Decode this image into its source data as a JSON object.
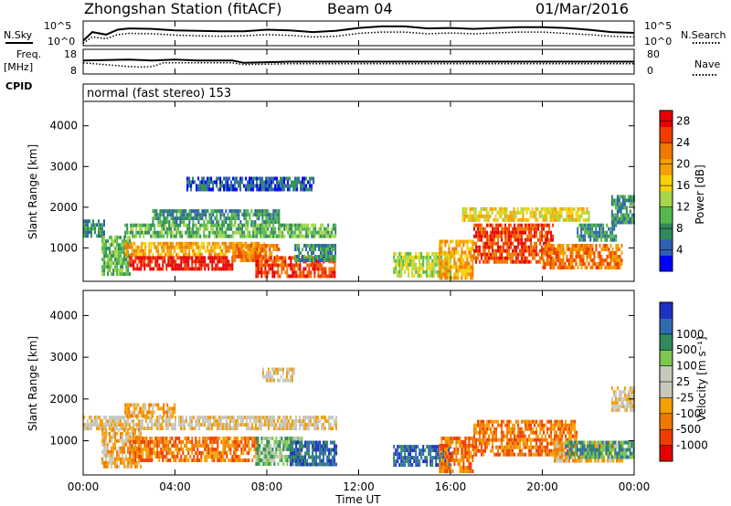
{
  "header": {
    "station": "Zhongshan Station (fitACF)",
    "beam": "Beam 04",
    "date": "01/Mar/2016"
  },
  "left_labels": {
    "nsky": "N.Sky",
    "freq_top": "Freq.",
    "freq_unit": "[MHz]",
    "cpid": "CPID"
  },
  "right_labels": {
    "nsearch": "N.Search",
    "nave": "Nave"
  },
  "cpid_text": "normal (fast stereo) 153",
  "colors": {
    "power": [
      "#0000ff",
      "#2f5fb0",
      "#2f8a5c",
      "#55b84a",
      "#a6d64a",
      "#f5d20a",
      "#f5a000",
      "#f07800",
      "#f03c00",
      "#e60000"
    ],
    "velocity": [
      "#e60000",
      "#f03c00",
      "#f07800",
      "#f5a000",
      "#c8c8be",
      "#c8c8be",
      "#7ec850",
      "#2f8a5c",
      "#2f6ab0",
      "#2030c0"
    ]
  },
  "chart_data": [
    {
      "type": "line",
      "name": "noise",
      "xlim": [
        0,
        24
      ],
      "ylim_left_ticks": [
        "10^5",
        "10^0"
      ],
      "ylim_right_ticks": [
        "10^5",
        "10^0"
      ],
      "series": [
        {
          "name": "N.Sky",
          "style": "solid",
          "x": [
            0,
            0.4,
            1,
            1.5,
            2,
            3,
            4,
            5,
            6,
            7,
            8,
            9,
            10,
            11,
            12,
            13,
            14,
            15,
            16,
            17,
            18,
            19,
            20,
            21,
            22,
            23,
            24
          ],
          "y": [
            0.8,
            0.45,
            0.55,
            0.35,
            0.3,
            0.32,
            0.38,
            0.4,
            0.42,
            0.42,
            0.35,
            0.38,
            0.45,
            0.4,
            0.28,
            0.22,
            0.22,
            0.3,
            0.28,
            0.32,
            0.28,
            0.25,
            0.25,
            0.28,
            0.35,
            0.45,
            0.48
          ]
        },
        {
          "name": "N.Search",
          "style": "dotted",
          "x": [
            0,
            0.4,
            1,
            1.5,
            2,
            3,
            4,
            5,
            6,
            7,
            8,
            9,
            10,
            11,
            12,
            13,
            14,
            15,
            16,
            17,
            18,
            19,
            20,
            21,
            22,
            23,
            24
          ],
          "y": [
            0.9,
            0.65,
            0.72,
            0.55,
            0.5,
            0.52,
            0.57,
            0.6,
            0.62,
            0.6,
            0.55,
            0.58,
            0.65,
            0.62,
            0.5,
            0.45,
            0.45,
            0.52,
            0.48,
            0.52,
            0.48,
            0.45,
            0.45,
            0.5,
            0.55,
            0.62,
            0.65
          ]
        }
      ]
    },
    {
      "type": "line",
      "name": "frequency",
      "xlim": [
        0,
        24
      ],
      "left_ticks": [
        "18",
        "8"
      ],
      "right_ticks": [
        "80",
        "0"
      ],
      "series": [
        {
          "name": "Freq.",
          "style": "solid",
          "x": [
            0,
            2,
            3,
            4,
            5,
            6,
            6.5,
            7,
            9,
            12,
            16,
            20,
            24
          ],
          "y": [
            0.45,
            0.42,
            0.45,
            0.42,
            0.45,
            0.45,
            0.45,
            0.55,
            0.5,
            0.5,
            0.5,
            0.5,
            0.5
          ]
        },
        {
          "name": "Nave",
          "style": "dotted",
          "x": [
            0,
            2,
            2.5,
            3,
            3.5,
            4,
            6,
            6.5,
            7,
            9,
            12,
            16,
            20,
            24
          ],
          "y": [
            0.55,
            0.7,
            0.72,
            0.7,
            0.55,
            0.55,
            0.55,
            0.55,
            0.62,
            0.58,
            0.58,
            0.58,
            0.58,
            0.58
          ]
        }
      ]
    },
    {
      "type": "heatmap",
      "name": "power",
      "xlabel": "",
      "ylabel": "Slant Range [km]",
      "yticks": [
        1000,
        2000,
        3000,
        4000
      ],
      "ylim": [
        180,
        4600
      ],
      "xlim": [
        0,
        24
      ],
      "colorbar_label": "Power [dB]",
      "colorbar_ticks": [
        4,
        8,
        12,
        16,
        20,
        24,
        28
      ],
      "colorbar_range": [
        0,
        30
      ],
      "regions": [
        {
          "t0": 0.0,
          "t1": 0.9,
          "r0": 1300,
          "r1": 1700,
          "level": 2
        },
        {
          "t0": 0.8,
          "t1": 2.0,
          "r0": 400,
          "r1": 1300,
          "level": 3
        },
        {
          "t0": 1.8,
          "t1": 11.0,
          "r0": 1300,
          "r1": 1600,
          "level": 3
        },
        {
          "t0": 1.8,
          "t1": 8.0,
          "r0": 850,
          "r1": 1150,
          "level": 6
        },
        {
          "t0": 2.0,
          "t1": 6.5,
          "r0": 450,
          "r1": 800,
          "level": 9
        },
        {
          "t0": 3.0,
          "t1": 8.5,
          "r0": 1650,
          "r1": 1950,
          "level": 2
        },
        {
          "t0": 6.5,
          "t1": 8.5,
          "r0": 700,
          "r1": 1100,
          "level": 7
        },
        {
          "t0": 7.5,
          "t1": 11.0,
          "r0": 300,
          "r1": 800,
          "level": 8
        },
        {
          "t0": 9.2,
          "t1": 11.0,
          "r0": 700,
          "r1": 1100,
          "level": 2
        },
        {
          "t0": 4.5,
          "t1": 10.0,
          "r0": 2450,
          "r1": 2750,
          "level": 1
        },
        {
          "t0": 13.5,
          "t1": 16.0,
          "r0": 300,
          "r1": 900,
          "level": 4
        },
        {
          "t0": 15.5,
          "t1": 17.0,
          "r0": 300,
          "r1": 1200,
          "level": 6
        },
        {
          "t0": 17.0,
          "t1": 20.5,
          "r0": 700,
          "r1": 1600,
          "level": 8
        },
        {
          "t0": 20.0,
          "t1": 23.5,
          "r0": 500,
          "r1": 1100,
          "level": 7
        },
        {
          "t0": 21.5,
          "t1": 23.2,
          "r0": 1200,
          "r1": 1600,
          "level": 2
        },
        {
          "t0": 23.0,
          "t1": 24.0,
          "r0": 1600,
          "r1": 2300,
          "level": 2
        },
        {
          "t0": 16.5,
          "t1": 22.0,
          "r0": 1700,
          "r1": 2000,
          "level": 5
        }
      ]
    },
    {
      "type": "heatmap",
      "name": "velocity",
      "xlabel": "Time UT",
      "ylabel": "Slant Range [km]",
      "yticks": [
        1000,
        2000,
        3000,
        4000
      ],
      "ylim": [
        180,
        4600
      ],
      "xlim": [
        0,
        24
      ],
      "xticks": [
        "00:00",
        "04:00",
        "08:00",
        "12:00",
        "16:00",
        "20:00",
        "00:00"
      ],
      "colorbar_label": "Velocity [m s⁻¹]",
      "colorbar_ticks": [
        "-1000",
        "-500",
        "-100",
        "-25",
        "25",
        "100",
        "500",
        "1000"
      ],
      "regions": [
        {
          "t0": 0.0,
          "t1": 11.0,
          "r0": 1300,
          "r1": 1600,
          "level": 4
        },
        {
          "t0": 0.8,
          "t1": 2.5,
          "r0": 400,
          "r1": 1300,
          "level": 3
        },
        {
          "t0": 2.0,
          "t1": 7.5,
          "r0": 500,
          "r1": 1100,
          "level": 2
        },
        {
          "t0": 1.8,
          "t1": 4.0,
          "r0": 1600,
          "r1": 1900,
          "level": 3
        },
        {
          "t0": 7.5,
          "t1": 9.5,
          "r0": 400,
          "r1": 1100,
          "level": 6
        },
        {
          "t0": 9.0,
          "t1": 11.0,
          "r0": 400,
          "r1": 1000,
          "level": 8
        },
        {
          "t0": 7.8,
          "t1": 9.2,
          "r0": 2450,
          "r1": 2750,
          "level": 4
        },
        {
          "t0": 13.5,
          "t1": 16.0,
          "r0": 400,
          "r1": 900,
          "level": 8
        },
        {
          "t0": 15.5,
          "t1": 17.0,
          "r0": 300,
          "r1": 1100,
          "level": 2
        },
        {
          "t0": 17.0,
          "t1": 21.5,
          "r0": 700,
          "r1": 1500,
          "level": 2
        },
        {
          "t0": 20.5,
          "t1": 23.5,
          "r0": 500,
          "r1": 1000,
          "level": 3
        },
        {
          "t0": 23.0,
          "t1": 24.0,
          "r0": 1700,
          "r1": 2300,
          "level": 4
        },
        {
          "t0": 21.0,
          "t1": 24.0,
          "r0": 600,
          "r1": 1000,
          "level": 7
        }
      ]
    }
  ]
}
